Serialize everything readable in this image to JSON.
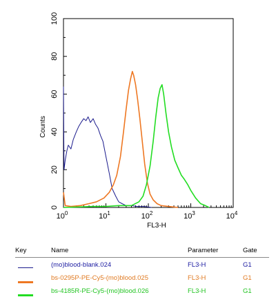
{
  "chart_data": {
    "type": "line",
    "xlabel": "FL3-H",
    "ylabel": "Counts",
    "xscale": "log",
    "xlim": [
      1,
      10000
    ],
    "ylim": [
      0,
      100
    ],
    "xticks": [
      {
        "base": "10",
        "exp": "0"
      },
      {
        "base": "10",
        "exp": "1"
      },
      {
        "base": "10",
        "exp": "2"
      },
      {
        "base": "10",
        "exp": "3"
      },
      {
        "base": "10",
        "exp": "4"
      }
    ],
    "yticks": [
      "0",
      "20",
      "40",
      "60",
      "80",
      "100"
    ],
    "series": [
      {
        "name": "(mo)blood-blank.024",
        "color": "#1a1a8c",
        "points": [
          [
            1.0,
            64
          ],
          [
            1.03,
            20
          ],
          [
            1.1,
            25
          ],
          [
            1.2,
            30
          ],
          [
            1.3,
            33
          ],
          [
            1.5,
            31
          ],
          [
            1.7,
            36
          ],
          [
            2.0,
            40
          ],
          [
            2.3,
            43
          ],
          [
            2.6,
            45
          ],
          [
            3.0,
            47
          ],
          [
            3.4,
            46
          ],
          [
            3.8,
            48
          ],
          [
            4.3,
            45
          ],
          [
            5.0,
            47
          ],
          [
            5.7,
            44
          ],
          [
            6.5,
            42
          ],
          [
            7.5,
            38
          ],
          [
            8.5,
            35
          ],
          [
            10.0,
            27
          ],
          [
            12.0,
            18
          ],
          [
            14.0,
            10
          ],
          [
            17.0,
            6
          ],
          [
            20.0,
            3
          ],
          [
            24.0,
            2
          ],
          [
            30.0,
            1
          ],
          [
            40.0,
            1
          ],
          [
            55.0,
            0.5
          ],
          [
            80.0,
            0.5
          ],
          [
            120.0,
            0
          ]
        ]
      },
      {
        "name": "bs-0295P-PE-Cy5-(mo)blood.025",
        "color": "#ee7722",
        "points": [
          [
            1.0,
            8
          ],
          [
            1.1,
            1
          ],
          [
            1.5,
            0.5
          ],
          [
            2.5,
            1
          ],
          [
            4.0,
            2
          ],
          [
            6.0,
            3
          ],
          [
            9.0,
            5
          ],
          [
            12.0,
            8
          ],
          [
            15.0,
            12
          ],
          [
            18.0,
            17
          ],
          [
            22.0,
            27
          ],
          [
            26.0,
            40
          ],
          [
            30.0,
            52
          ],
          [
            34.0,
            62
          ],
          [
            38.0,
            68
          ],
          [
            42.0,
            72
          ],
          [
            45.0,
            70
          ],
          [
            50.0,
            65
          ],
          [
            56.0,
            57
          ],
          [
            63.0,
            47
          ],
          [
            72.0,
            35
          ],
          [
            82.0,
            23
          ],
          [
            95.0,
            13
          ],
          [
            110.0,
            7
          ],
          [
            130.0,
            4
          ],
          [
            160.0,
            2
          ],
          [
            200.0,
            1
          ],
          [
            300.0,
            0.5
          ],
          [
            500.0,
            0
          ]
        ]
      },
      {
        "name": "bs-4185R-PE-Cy5-(mo)blood.026",
        "color": "#22dd22",
        "points": [
          [
            1.0,
            0
          ],
          [
            5.0,
            0.5
          ],
          [
            10.0,
            0.5
          ],
          [
            20.0,
            1
          ],
          [
            40.0,
            1
          ],
          [
            60.0,
            3
          ],
          [
            75.0,
            6
          ],
          [
            90.0,
            12
          ],
          [
            110.0,
            22
          ],
          [
            130.0,
            35
          ],
          [
            150.0,
            48
          ],
          [
            170.0,
            58
          ],
          [
            190.0,
            63
          ],
          [
            210.0,
            65
          ],
          [
            230.0,
            60
          ],
          [
            260.0,
            50
          ],
          [
            300.0,
            40
          ],
          [
            350.0,
            32
          ],
          [
            420.0,
            25
          ],
          [
            500.0,
            21
          ],
          [
            600.0,
            17
          ],
          [
            700.0,
            15
          ],
          [
            850.0,
            12
          ],
          [
            1000.0,
            9
          ],
          [
            1300.0,
            5
          ],
          [
            1700.0,
            2
          ],
          [
            2200.0,
            1
          ],
          [
            2700.0,
            0
          ]
        ]
      }
    ]
  },
  "key": {
    "headers": {
      "key": "Key",
      "name": "Name",
      "parameter": "Parameter",
      "gate": "Gate"
    },
    "rows": [
      {
        "name": "(mo)blood-blank.024",
        "parameter": "FL3-H",
        "gate": "G1",
        "color": "#1a1a8c",
        "text_color": "#1a1aa0"
      },
      {
        "name": "bs-0295P-PE-Cy5-(mo)blood.025",
        "parameter": "FL3-H",
        "gate": "G1",
        "color": "#ee7722",
        "text_color": "#e07a22"
      },
      {
        "name": "bs-4185R-PE-Cy5-(mo)blood.026",
        "parameter": "FL3-H",
        "gate": "G1",
        "color": "#22dd22",
        "text_color": "#22c422"
      }
    ]
  }
}
